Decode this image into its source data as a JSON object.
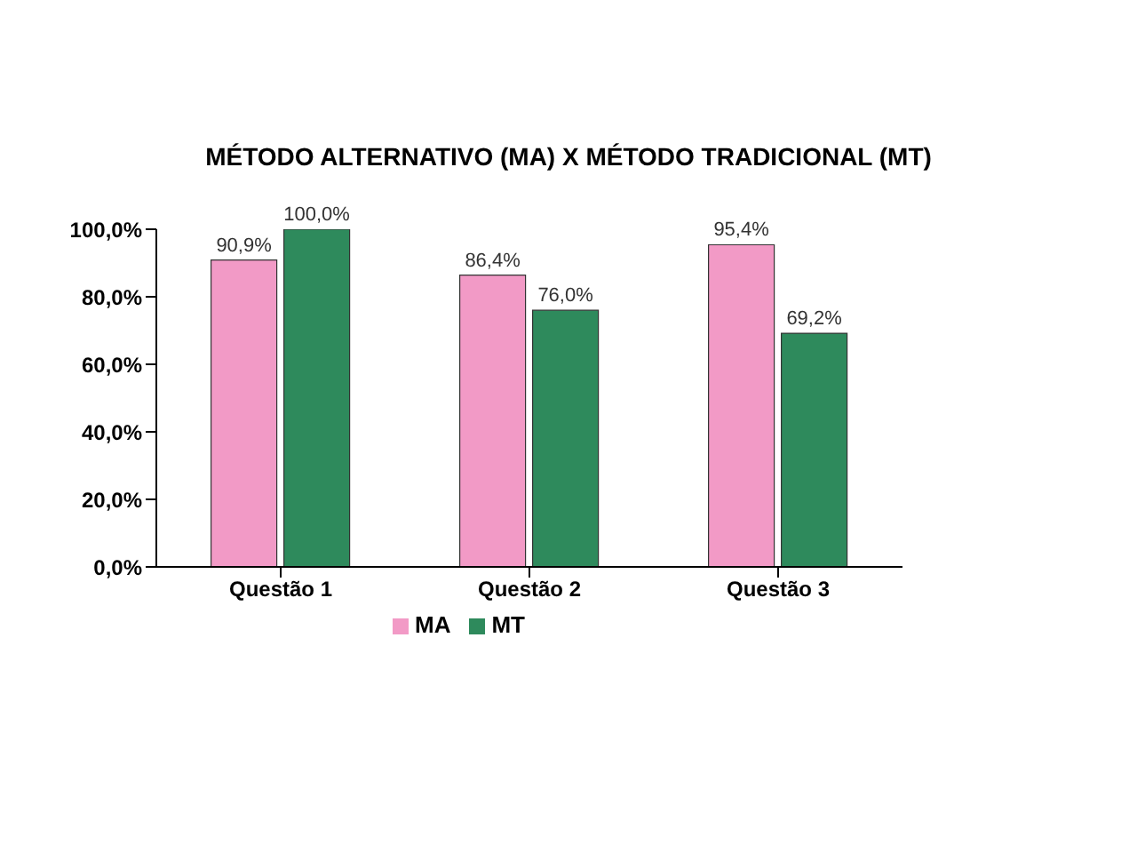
{
  "chart_data": {
    "type": "bar",
    "title": "MÉTODO ALTERNATIVO (MA)  X  MÉTODO TRADICIONAL (MT)",
    "categories": [
      "Questão 1",
      "Questão 2",
      "Questão 3"
    ],
    "series": [
      {
        "name": "MA",
        "color": "#f29ac6",
        "values": [
          90.9,
          86.4,
          95.4
        ],
        "value_labels": [
          "90,9%",
          "86,4%",
          "95,4%"
        ]
      },
      {
        "name": "MT",
        "color": "#2e8a5c",
        "values": [
          100,
          76,
          69.2
        ],
        "value_labels": [
          "100,0%",
          "76,0%",
          "69,2%"
        ]
      }
    ],
    "ylim": [
      0,
      100
    ],
    "yticks": [
      {
        "value": 0,
        "label": "0,0%"
      },
      {
        "value": 20,
        "label": "20,0%"
      },
      {
        "value": 40,
        "label": "40,0%"
      },
      {
        "value": 60,
        "label": "60,0%"
      },
      {
        "value": 80,
        "label": "80,0%"
      },
      {
        "value": 100,
        "label": "100,0%"
      }
    ],
    "legend": "bottom"
  }
}
